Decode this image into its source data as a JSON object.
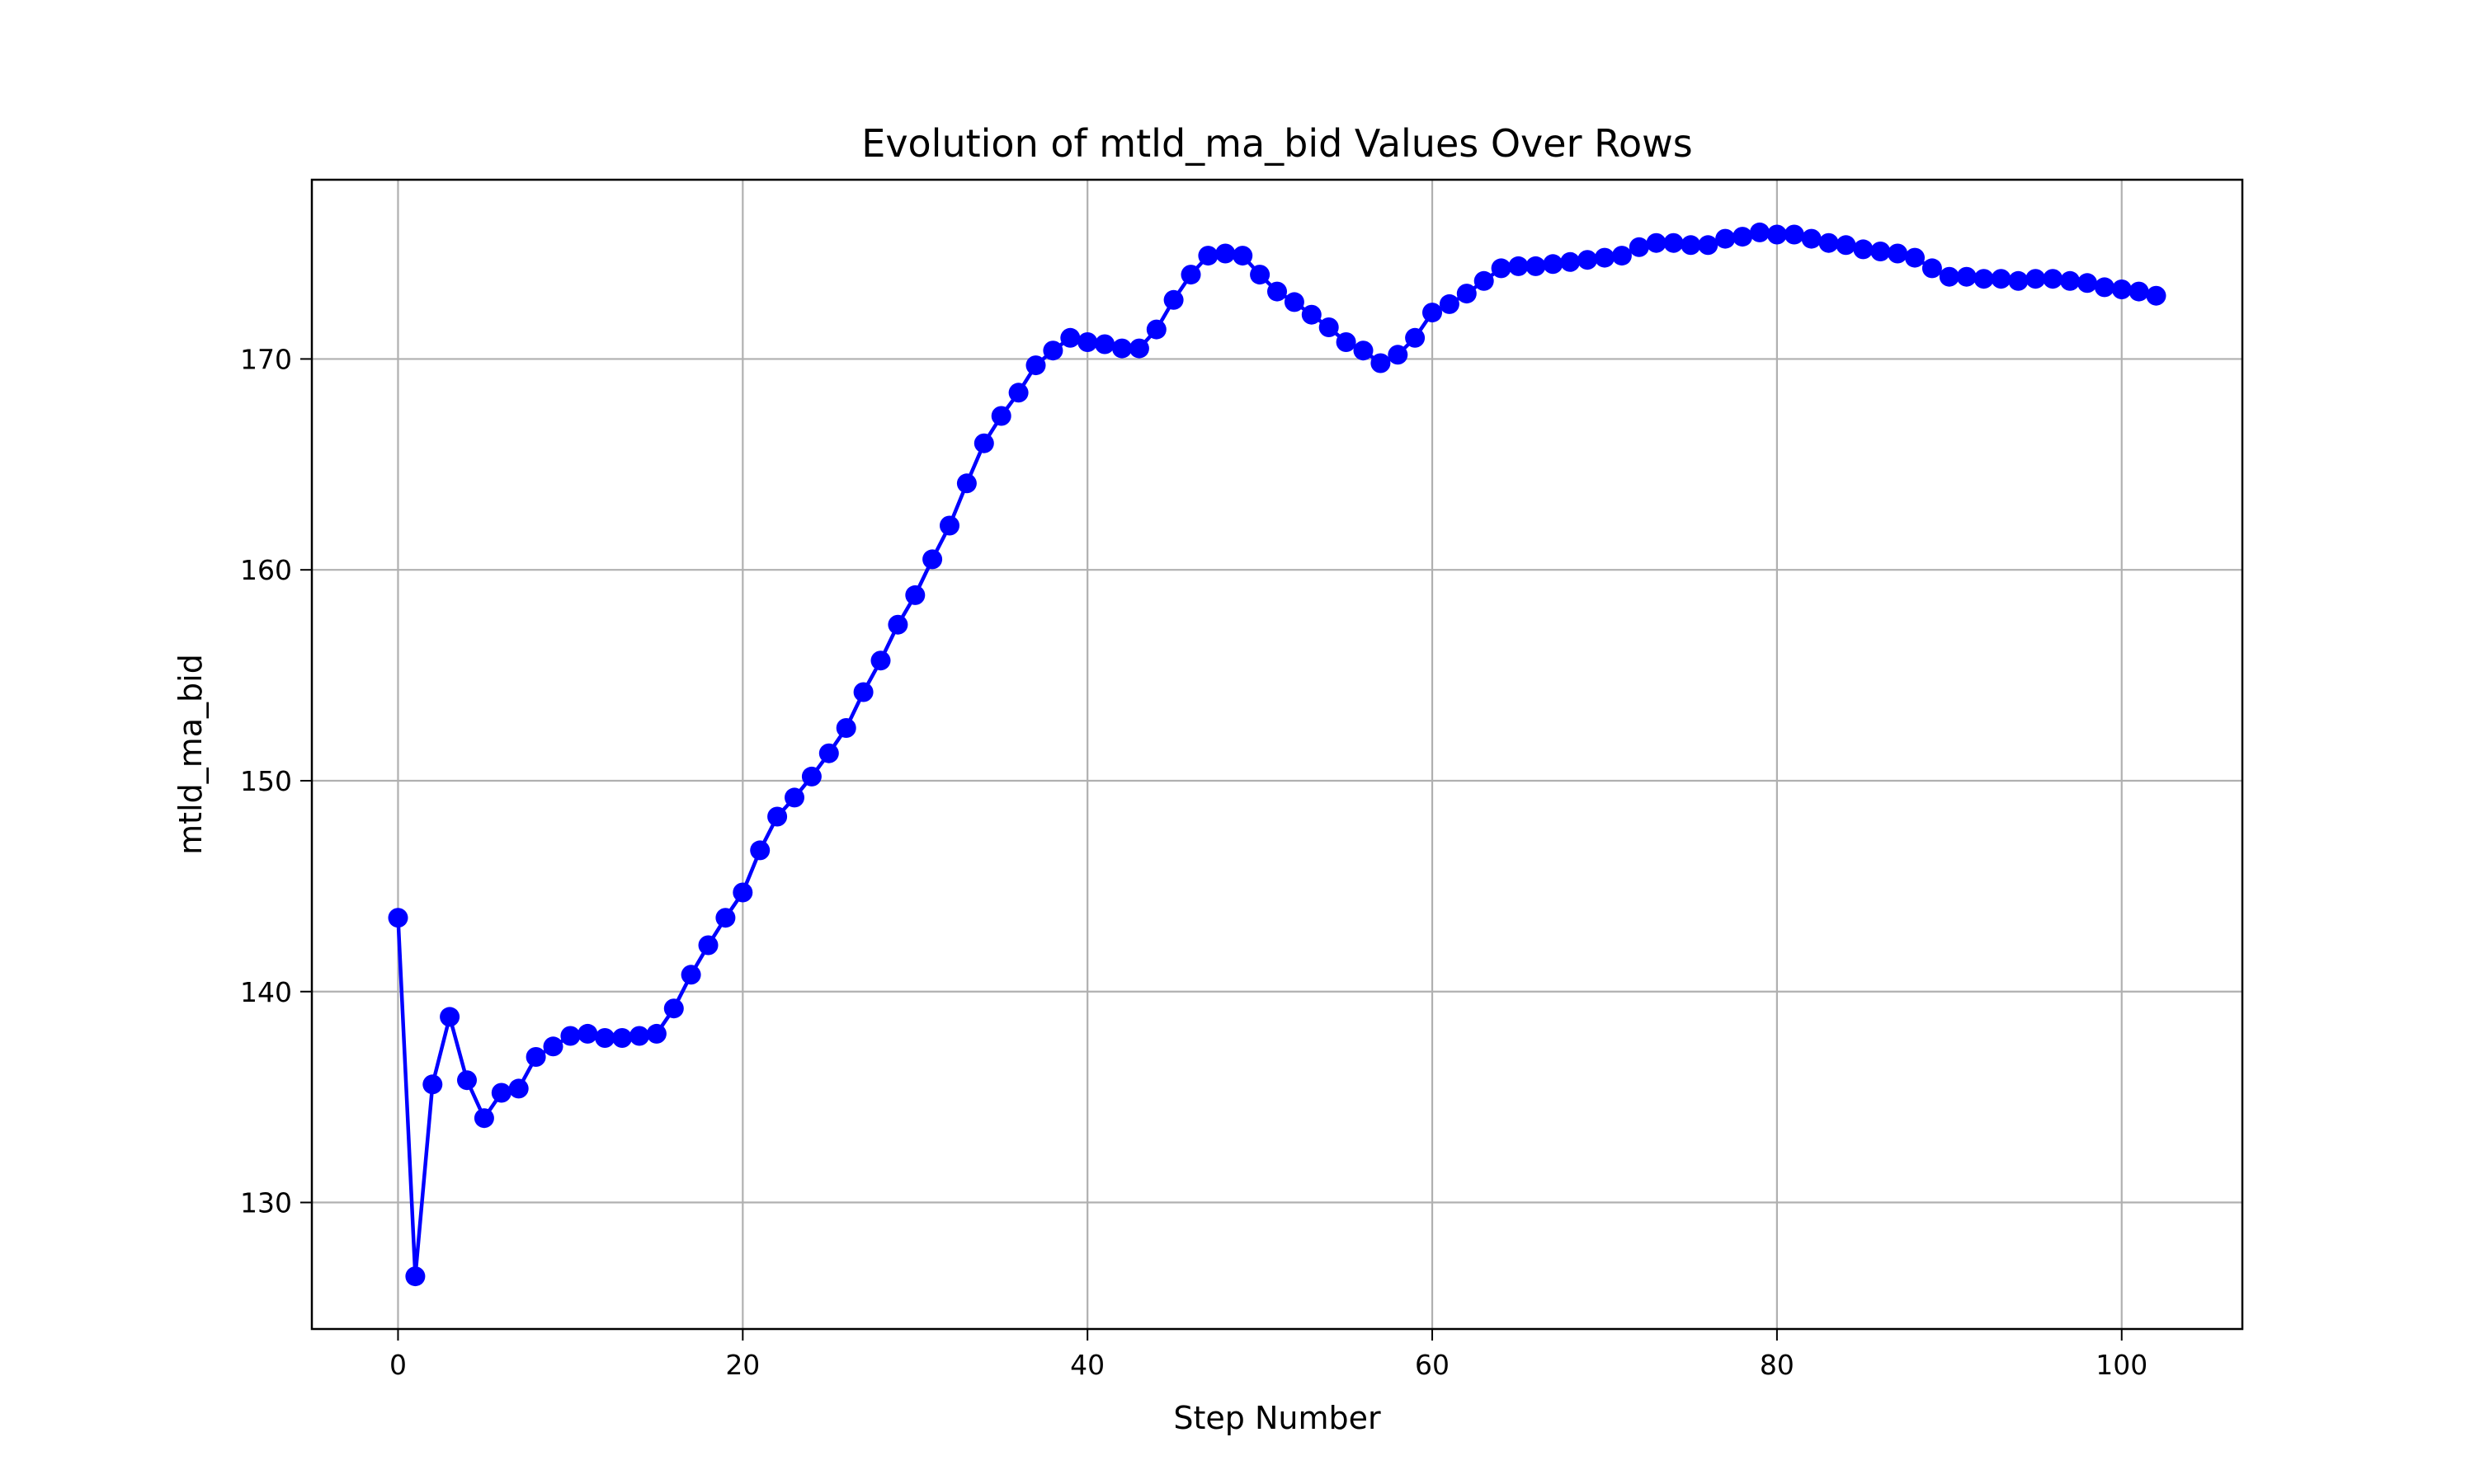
{
  "chart_data": {
    "type": "line",
    "title": "Evolution of mtld_ma_bid Values Over Rows",
    "xlabel": "Step Number",
    "ylabel": "mtld_ma_bid",
    "xlim": [
      -5,
      107
    ],
    "ylim": [
      124,
      178.5
    ],
    "xticks": [
      0,
      20,
      40,
      60,
      80,
      100
    ],
    "yticks": [
      130,
      140,
      150,
      160,
      170
    ],
    "grid": true,
    "line_color": "#0000ff",
    "marker": "circle",
    "series": [
      {
        "x": [
          0,
          1,
          2,
          3,
          4,
          5,
          6,
          7,
          8,
          9,
          10,
          11,
          12,
          13,
          14,
          15,
          16,
          17,
          18,
          19,
          20,
          21,
          22,
          23,
          24,
          25,
          26,
          27,
          28,
          29,
          30,
          31,
          32,
          33,
          34,
          35,
          36,
          37,
          38,
          39,
          40,
          41,
          42,
          43,
          44,
          45,
          46,
          47,
          48,
          49,
          50,
          51,
          52,
          53,
          54,
          55,
          56,
          57,
          58,
          59,
          60,
          61,
          62,
          63,
          64,
          65,
          66,
          67,
          68,
          69,
          70,
          71,
          72,
          73,
          74,
          75,
          76,
          77,
          78,
          79,
          80,
          81,
          82,
          83,
          84,
          85,
          86,
          87,
          88,
          89,
          90,
          91,
          92,
          93,
          94,
          95,
          96,
          97,
          98,
          99,
          100,
          101,
          102
        ],
        "y": [
          143.5,
          126.5,
          135.6,
          138.8,
          135.8,
          134.0,
          135.2,
          135.4,
          136.9,
          137.4,
          137.9,
          138.0,
          137.8,
          137.8,
          137.9,
          138.0,
          139.2,
          140.8,
          142.2,
          143.5,
          144.7,
          146.7,
          148.3,
          149.2,
          150.2,
          151.3,
          152.5,
          154.2,
          155.7,
          157.4,
          158.8,
          160.5,
          162.1,
          164.1,
          166.0,
          167.3,
          168.4,
          169.7,
          170.4,
          171.0,
          170.8,
          170.7,
          170.5,
          170.5,
          171.4,
          172.8,
          174.0,
          174.9,
          175.0,
          174.9,
          174.0,
          173.2,
          172.7,
          172.1,
          171.5,
          170.8,
          170.4,
          169.8,
          170.2,
          171.0,
          172.2,
          172.6,
          173.1,
          173.7,
          174.3,
          174.4,
          174.4,
          174.5,
          174.6,
          174.7,
          174.8,
          174.9,
          175.3,
          175.5,
          175.5,
          175.4,
          175.4,
          175.7,
          175.8,
          176.0,
          175.9,
          175.9,
          175.7,
          175.5,
          175.4,
          175.2,
          175.1,
          175.0,
          174.8,
          174.3,
          173.9,
          173.9,
          173.8,
          173.8,
          173.7,
          173.8,
          173.8,
          173.7,
          173.6,
          173.4,
          173.3,
          173.2,
          173.0
        ]
      }
    ]
  }
}
